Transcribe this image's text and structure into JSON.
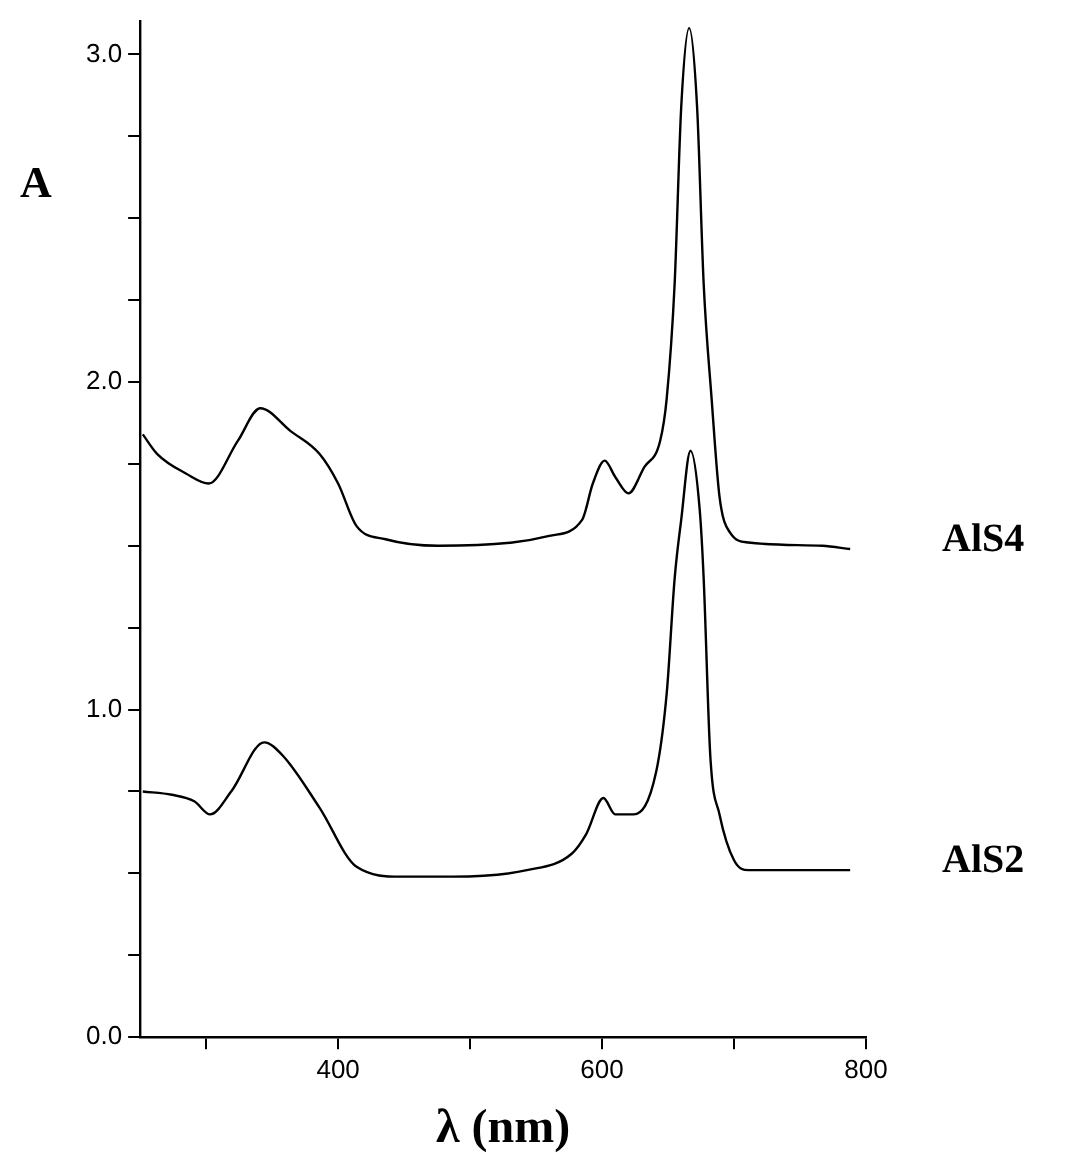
{
  "chart_data": {
    "type": "line",
    "xlabel": "λ (nm)",
    "ylabel": "A",
    "xlim": [
      250,
      800
    ],
    "xticks": [
      {
        "value": 300,
        "label": null
      },
      400,
      {
        "value": 500,
        "label": null
      },
      600,
      {
        "value": 700,
        "label": null
      },
      800
    ],
    "ylim": [
      0,
      3.1
    ],
    "yticks": [
      "0.0",
      {
        "value": 0.25,
        "label": null
      },
      {
        "value": 0.5,
        "label": null
      },
      {
        "value": 0.75,
        "label": null
      },
      {
        "value": 1,
        "label": "1.0"
      },
      {
        "value": 1.25,
        "label": null
      },
      {
        "value": 1.5,
        "label": null
      },
      {
        "value": 1.75,
        "label": null
      },
      {
        "value": 2,
        "label": "2.0"
      },
      {
        "value": 2.25,
        "label": null
      },
      {
        "value": 2.5,
        "label": null
      },
      {
        "value": 2.75,
        "label": null
      },
      {
        "value": 3,
        "label": "3.0"
      }
    ],
    "grid": false,
    "legend": false,
    "marker": "none",
    "line_style": "solid",
    "series": [
      {
        "name": "AlS4",
        "color": "#000000",
        "x": [
          252,
          263,
          285,
          302,
          324,
          341,
          364,
          386,
          400,
          414,
          436,
          476,
          532,
          560,
          585,
          593,
          602,
          610,
          620,
          632,
          644,
          649,
          655,
          660,
          666,
          672,
          677,
          683,
          689,
          697,
          711,
          767,
          788
        ],
        "values": [
          1.84,
          1.78,
          1.72,
          1.69,
          1.82,
          1.92,
          1.85,
          1.78,
          1.69,
          1.56,
          1.52,
          1.5,
          1.51,
          1.53,
          1.58,
          1.69,
          1.76,
          1.71,
          1.66,
          1.74,
          1.82,
          1.95,
          2.3,
          2.84,
          3.08,
          2.84,
          2.3,
          1.95,
          1.65,
          1.54,
          1.51,
          1.5,
          1.49
        ]
      },
      {
        "name": "AlS2",
        "color": "#000000",
        "x": [
          252,
          274,
          291,
          303,
          319,
          344,
          358,
          386,
          414,
          448,
          487,
          543,
          577,
          588,
          601,
          610,
          624,
          641,
          649,
          655,
          660,
          667,
          674,
          677,
          682,
          689,
          700,
          711,
          767,
          788
        ],
        "values": [
          0.75,
          0.74,
          0.72,
          0.68,
          0.75,
          0.9,
          0.86,
          0.7,
          0.52,
          0.49,
          0.49,
          0.51,
          0.56,
          0.62,
          0.73,
          0.68,
          0.68,
          0.81,
          1.05,
          1.4,
          1.58,
          1.79,
          1.61,
          1.4,
          0.86,
          0.68,
          0.54,
          0.51,
          0.51,
          0.51
        ]
      }
    ]
  }
}
